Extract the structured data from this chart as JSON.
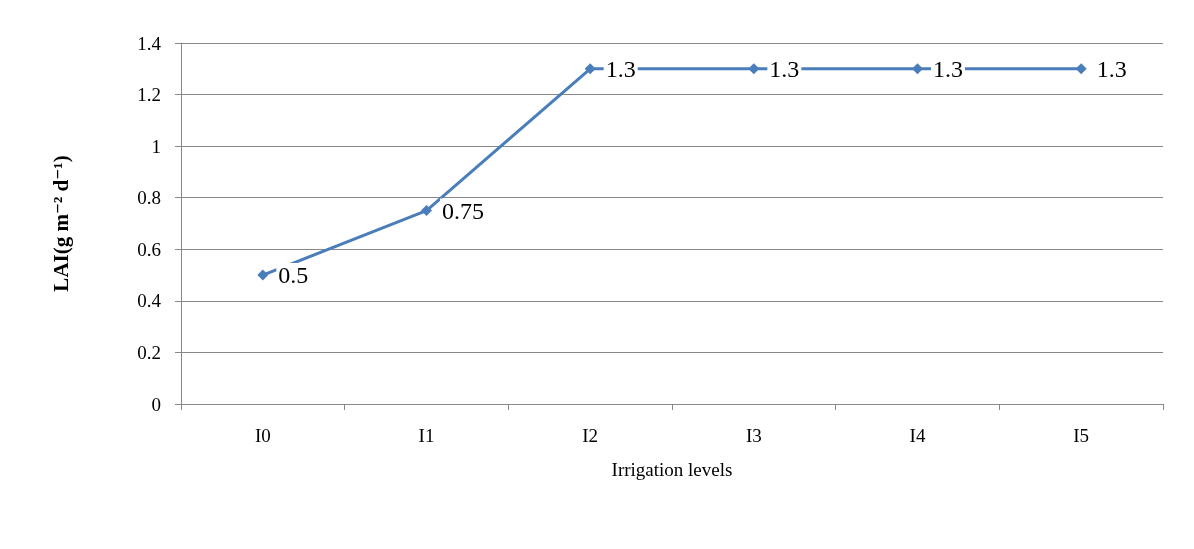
{
  "chart_data": {
    "type": "line",
    "xlabel": "Irrigation levels",
    "ylabel": "LAI(g m⁻² d⁻¹)",
    "categories": [
      "I0",
      "I1",
      "I2",
      "I3",
      "I4",
      "I5"
    ],
    "series": [
      {
        "color": "#4a7ebb",
        "values": [
          0.5,
          0.75,
          1.3,
          1.3,
          1.3,
          1.3
        ]
      }
    ],
    "ylim": [
      0,
      1.4
    ],
    "yticks": [
      0,
      0.2,
      0.4,
      0.6,
      0.8,
      1,
      1.2,
      1.4
    ],
    "grid": "y",
    "marker": "diamond",
    "line_style": "solid",
    "data_labels": true
  }
}
